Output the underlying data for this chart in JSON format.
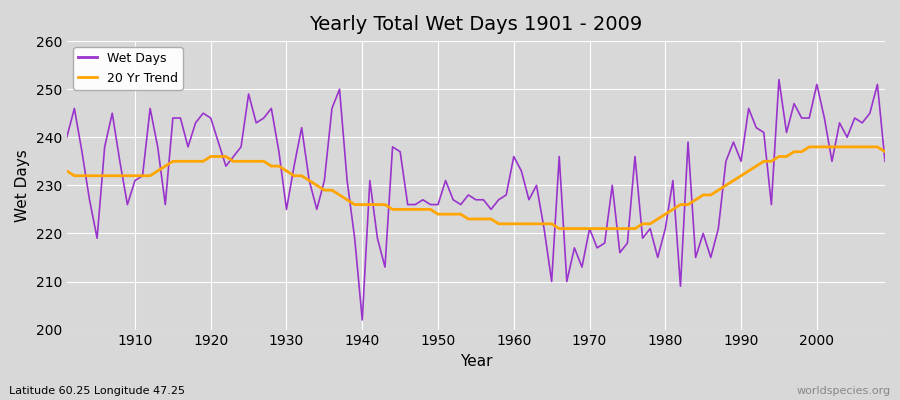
{
  "title": "Yearly Total Wet Days 1901 - 2009",
  "xlabel": "Year",
  "ylabel": "Wet Days",
  "ylim": [
    200,
    260
  ],
  "yticks": [
    200,
    210,
    220,
    230,
    240,
    250,
    260
  ],
  "xlim": [
    1901,
    2009
  ],
  "xticks": [
    1910,
    1920,
    1930,
    1940,
    1950,
    1960,
    1970,
    1980,
    1990,
    2000
  ],
  "wet_days_color": "#9933cc",
  "trend_color": "#FFA500",
  "bg_color": "#d8d8d8",
  "plot_bg_color": "#d8d8d8",
  "grid_color": "#ffffff",
  "legend_label_wet": "Wet Days",
  "legend_label_trend": "20 Yr Trend",
  "bottom_left_text": "Latitude 60.25 Longitude 47.25",
  "bottom_right_text": "worldspecies.org",
  "years": [
    1901,
    1902,
    1903,
    1904,
    1905,
    1906,
    1907,
    1908,
    1909,
    1910,
    1911,
    1912,
    1913,
    1914,
    1915,
    1916,
    1917,
    1918,
    1919,
    1920,
    1921,
    1922,
    1923,
    1924,
    1925,
    1926,
    1927,
    1928,
    1929,
    1930,
    1931,
    1932,
    1933,
    1934,
    1935,
    1936,
    1937,
    1938,
    1939,
    1940,
    1941,
    1942,
    1943,
    1944,
    1945,
    1946,
    1947,
    1948,
    1949,
    1950,
    1951,
    1952,
    1953,
    1954,
    1955,
    1956,
    1957,
    1958,
    1959,
    1960,
    1961,
    1962,
    1963,
    1964,
    1965,
    1966,
    1967,
    1968,
    1969,
    1970,
    1971,
    1972,
    1973,
    1974,
    1975,
    1976,
    1977,
    1978,
    1979,
    1980,
    1981,
    1982,
    1983,
    1984,
    1985,
    1986,
    1987,
    1988,
    1989,
    1990,
    1991,
    1992,
    1993,
    1994,
    1995,
    1996,
    1997,
    1998,
    1999,
    2000,
    2001,
    2002,
    2003,
    2004,
    2005,
    2006,
    2007,
    2008,
    2009
  ],
  "wet_days": [
    240,
    246,
    237,
    227,
    219,
    238,
    245,
    235,
    226,
    231,
    232,
    246,
    238,
    226,
    244,
    244,
    238,
    243,
    245,
    244,
    239,
    234,
    236,
    238,
    249,
    243,
    244,
    246,
    237,
    225,
    234,
    242,
    231,
    225,
    231,
    246,
    250,
    231,
    219,
    202,
    231,
    219,
    213,
    238,
    237,
    226,
    226,
    227,
    226,
    226,
    231,
    227,
    226,
    228,
    227,
    227,
    225,
    227,
    228,
    236,
    233,
    227,
    230,
    221,
    210,
    236,
    210,
    217,
    213,
    221,
    217,
    218,
    230,
    216,
    218,
    236,
    219,
    221,
    215,
    221,
    231,
    209,
    239,
    215,
    220,
    215,
    221,
    235,
    239,
    235,
    246,
    242,
    241,
    226,
    252,
    241,
    247,
    244,
    244,
    251,
    244,
    235,
    243,
    240,
    244,
    243,
    245,
    251,
    235
  ],
  "trend_values": [
    233,
    232,
    232,
    232,
    232,
    232,
    232,
    232,
    232,
    232,
    232,
    232,
    233,
    234,
    235,
    235,
    235,
    235,
    235,
    236,
    236,
    236,
    235,
    235,
    235,
    235,
    235,
    234,
    234,
    233,
    232,
    232,
    231,
    230,
    229,
    229,
    228,
    227,
    226,
    226,
    226,
    226,
    226,
    225,
    225,
    225,
    225,
    225,
    225,
    224,
    224,
    224,
    224,
    223,
    223,
    223,
    223,
    222,
    222,
    222,
    222,
    222,
    222,
    222,
    222,
    221,
    221,
    221,
    221,
    221,
    221,
    221,
    221,
    221,
    221,
    221,
    222,
    222,
    223,
    224,
    225,
    226,
    226,
    227,
    228,
    228,
    229,
    230,
    231,
    232,
    233,
    234,
    235,
    235,
    236,
    236,
    237,
    237,
    238,
    238,
    238,
    238,
    238,
    238,
    238,
    238,
    238,
    238,
    237
  ]
}
